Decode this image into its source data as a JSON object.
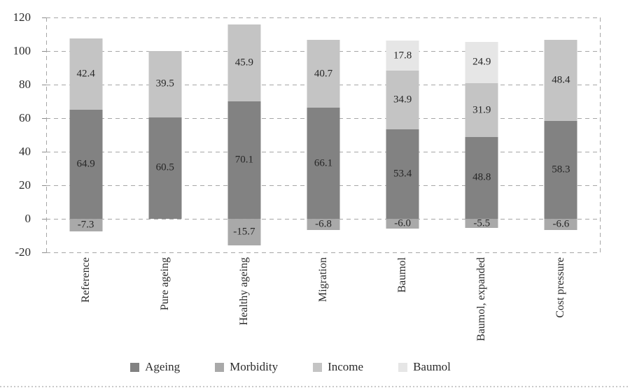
{
  "chart_data": {
    "type": "bar",
    "stacked": true,
    "title": "",
    "categories": [
      "Reference",
      "Pure ageing",
      "Healthy ageing",
      "Migration",
      "Baumol",
      "Baumol, expanded",
      "Cost pressure"
    ],
    "series": [
      {
        "name": "Ageing",
        "color": "#828282",
        "values": [
          64.9,
          60.5,
          70.1,
          66.1,
          53.4,
          48.8,
          58.3
        ]
      },
      {
        "name": "Morbidity",
        "color": "#a9a9a9",
        "values": [
          -7.3,
          0,
          -15.7,
          -6.8,
          -6.0,
          -5.5,
          -6.6
        ]
      },
      {
        "name": "Income",
        "color": "#c4c4c4",
        "values": [
          42.4,
          39.5,
          45.9,
          40.7,
          34.9,
          31.9,
          48.4
        ]
      },
      {
        "name": "Baumol",
        "color": "#e6e6e6",
        "values": [
          0,
          0,
          0,
          0,
          17.8,
          24.9,
          0
        ]
      }
    ],
    "ylim": [
      -20,
      120
    ],
    "yticks": [
      120,
      100,
      80,
      60,
      40,
      20,
      0,
      -20
    ],
    "grid": "dashed horizontal gridlines, dashed plot border",
    "gridline_color": "#a6a6a6",
    "legend_position": "bottom",
    "value_label_decimals": 1,
    "value_label_color": "#262626"
  }
}
